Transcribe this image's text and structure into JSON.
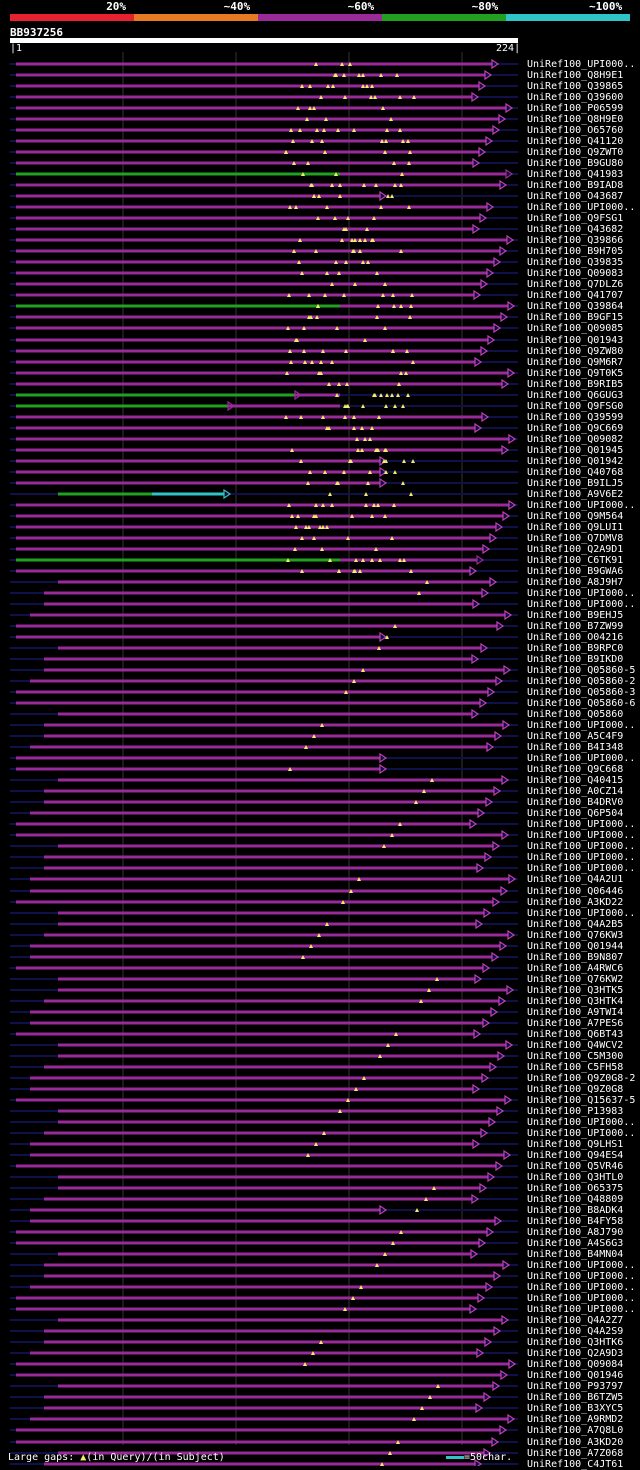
{
  "legend": {
    "percent_labels": [
      "20%",
      "~40%",
      "~60%",
      "~80%",
      "~100%"
    ],
    "colors": [
      "#e8212f",
      "#e87a23",
      "#9a2a9a",
      "#21a021",
      "#2fc4c8"
    ]
  },
  "query": {
    "id": "BB937256",
    "start": "1",
    "end": "224"
  },
  "hits": [
    "UniRef100_UPI000..",
    "UniRef100_Q8H9E1",
    "UniRef100_Q39865",
    "UniRef100_Q39600",
    "UniRef100_P06599",
    "UniRef100_Q8H9E0",
    "UniRef100_O65760",
    "UniRef100_Q41120",
    "UniRef100_Q9ZWT0",
    "UniRef100_B9GU80",
    "UniRef100_Q41983",
    "UniRef100_B9IAD8",
    "UniRef100_O43687",
    "UniRef100_UPI000..",
    "UniRef100_Q9FSG1",
    "UniRef100_Q43682",
    "UniRef100_Q39866",
    "UniRef100_B9H705",
    "UniRef100_Q39835",
    "UniRef100_Q09083",
    "UniRef100_Q7DLZ6",
    "UniRef100_Q41707",
    "UniRef100_Q39864",
    "UniRef100_B9GF15",
    "UniRef100_Q09085",
    "UniRef100_Q01943",
    "UniRef100_Q9ZW80",
    "UniRef100_Q9M6R7",
    "UniRef100_Q9T0K5",
    "UniRef100_B9RIB5",
    "UniRef100_Q6GUG3",
    "UniRef100_Q9FSG0",
    "UniRef100_Q39599",
    "UniRef100_Q9C669",
    "UniRef100_Q09082",
    "UniRef100_Q01945",
    "UniRef100_Q01942",
    "UniRef100_Q40768",
    "UniRef100_B9ILJ5",
    "UniRef100_A9V6E2",
    "UniRef100_UPI000..",
    "UniRef100_Q9M564",
    "UniRef100_Q9LUI1",
    "UniRef100_Q7DMV8",
    "UniRef100_Q2A9D1",
    "UniRef100_C6TK91",
    "UniRef100_B9GWA6",
    "UniRef100_A8J9H7",
    "UniRef100_UPI000..",
    "UniRef100_UPI000..",
    "UniRef100_B9EHJ5",
    "UniRef100_B7ZW99",
    "UniRef100_O04216",
    "UniRef100_B9RPC0",
    "UniRef100_B9IKD0",
    "UniRef100_Q05860-5",
    "UniRef100_Q05860-2",
    "UniRef100_Q05860-3",
    "UniRef100_Q05860-6",
    "UniRef100_Q05860",
    "UniRef100_UPI000..",
    "UniRef100_A5C4F9",
    "UniRef100_B4I348",
    "UniRef100_UPI000..",
    "UniRef100_Q9C668",
    "UniRef100_Q40415",
    "UniRef100_A0CZ14",
    "UniRef100_B4DRV0",
    "UniRef100_Q6P504",
    "UniRef100_UPI000..",
    "UniRef100_UPI000..",
    "UniRef100_UPI000..",
    "UniRef100_UPI000..",
    "UniRef100_UPI000..",
    "UniRef100_Q4A2U1",
    "UniRef100_Q06446",
    "UniRef100_A3KD22",
    "UniRef100_UPI000..",
    "UniRef100_Q4A2B5",
    "UniRef100_Q76KW3",
    "UniRef100_Q01944",
    "UniRef100_B9N807",
    "UniRef100_A4RWC6",
    "UniRef100_Q76KW2",
    "UniRef100_Q3HTK5",
    "UniRef100_Q3HTK4",
    "UniRef100_A9TWI4",
    "UniRef100_A7PES6",
    "UniRef100_Q6BT43",
    "UniRef100_Q4WCV2",
    "UniRef100_C5M300",
    "UniRef100_C5FH58",
    "UniRef100_Q9Z0G8-2",
    "UniRef100_Q9Z0G8",
    "UniRef100_Q15637-5",
    "UniRef100_P13983",
    "UniRef100_UPI000..",
    "UniRef100_UPI000..",
    "UniRef100_Q9LHS1",
    "UniRef100_Q94ES4",
    "UniRef100_Q5VR46",
    "UniRef100_Q3HTL0",
    "UniRef100_O65375",
    "UniRef100_Q48809",
    "UniRef100_B8ADK4",
    "UniRef100_B4FY58",
    "UniRef100_A8J790",
    "UniRef100_A4S6G3",
    "UniRef100_B4MN04",
    "UniRef100_UPI000..",
    "UniRef100_UPI000..",
    "UniRef100_UPI000..",
    "UniRef100_UPI000..",
    "UniRef100_UPI000..",
    "UniRef100_Q4A2Z7",
    "UniRef100_Q4A2S9",
    "UniRef100_Q3HTK6",
    "UniRef100_Q2A9D3",
    "UniRef100_Q09084",
    "UniRef100_Q01946",
    "UniRef100_P93797",
    "UniRef100_B6TZW5",
    "UniRef100_B3XYC5",
    "UniRef100_A9RMD2",
    "UniRef100_A7Q8L0",
    "UniRef100_A3KD20",
    "UniRef100_A7Z068",
    "UniRef100_C4JT61"
  ],
  "footer": {
    "gaps_label": "Large gaps:",
    "query_gap_text": "(in Query)/",
    "subject_gap_text": "(in Subject)",
    "scale_text": "=50char."
  }
}
